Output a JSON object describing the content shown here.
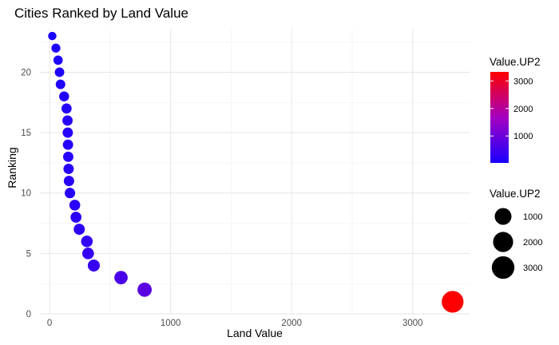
{
  "chart_data": {
    "type": "scatter",
    "title": "Cities Ranked by Land Value",
    "xlabel": "Land Value",
    "ylabel": "Ranking",
    "xlim": [
      -80,
      3470
    ],
    "ylim": [
      0,
      23.6
    ],
    "x_ticks": [
      0,
      1000,
      2000,
      3000
    ],
    "y_ticks": [
      0,
      5,
      10,
      15,
      20
    ],
    "grid": true,
    "legend_position": "right",
    "color_scale": {
      "title": "Value.UP2",
      "low_color": "#1a00ff",
      "high_color": "#ff0000",
      "range": [
        20,
        3330
      ],
      "breaks": [
        1000,
        2000,
        3000
      ]
    },
    "size_scale": {
      "title": "Value.UP2",
      "breaks": [
        1000,
        2000,
        3000
      ]
    },
    "points": [
      {
        "x": 3330,
        "y": 1
      },
      {
        "x": 785,
        "y": 2
      },
      {
        "x": 590,
        "y": 3
      },
      {
        "x": 365,
        "y": 4
      },
      {
        "x": 318,
        "y": 5
      },
      {
        "x": 308,
        "y": 6
      },
      {
        "x": 245,
        "y": 7
      },
      {
        "x": 218,
        "y": 8
      },
      {
        "x": 208,
        "y": 9
      },
      {
        "x": 168,
        "y": 10
      },
      {
        "x": 160,
        "y": 11
      },
      {
        "x": 157,
        "y": 12
      },
      {
        "x": 154,
        "y": 13
      },
      {
        "x": 152,
        "y": 14
      },
      {
        "x": 150,
        "y": 15
      },
      {
        "x": 148,
        "y": 16
      },
      {
        "x": 140,
        "y": 17
      },
      {
        "x": 120,
        "y": 18
      },
      {
        "x": 90,
        "y": 19
      },
      {
        "x": 82,
        "y": 20
      },
      {
        "x": 70,
        "y": 21
      },
      {
        "x": 52,
        "y": 22
      },
      {
        "x": 22,
        "y": 23
      }
    ]
  }
}
